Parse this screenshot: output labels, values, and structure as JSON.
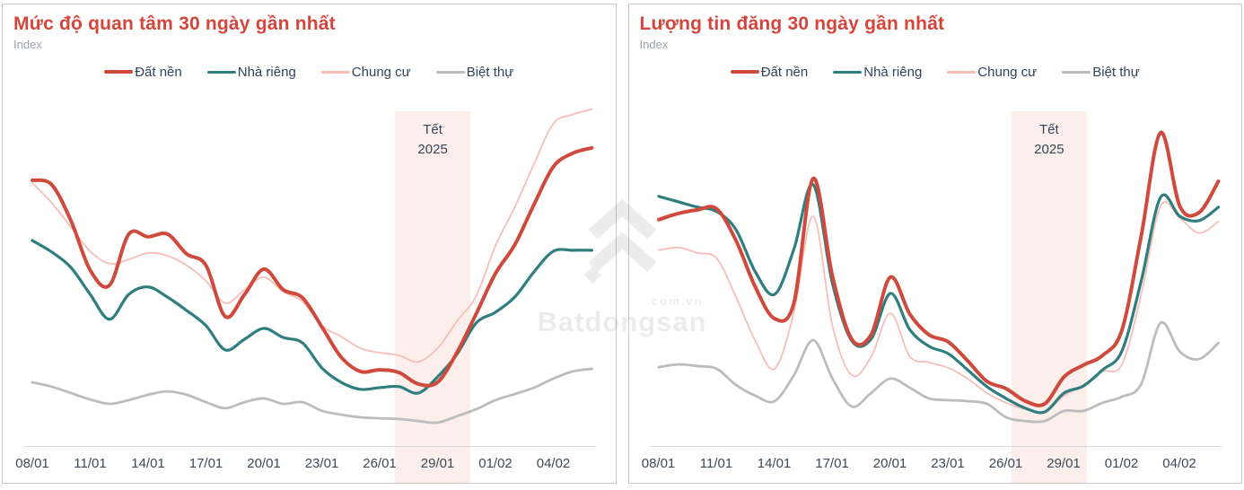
{
  "watermark": {
    "brand": "Batdongsan",
    "domain": ".com.vn",
    "logo": "chevron-gem-icon"
  },
  "colors": {
    "title_accent": "#d5453b",
    "axis_text": "#3b4a5a",
    "subtitle_text": "#9ba1a8",
    "panel_border": "#c9c9c9",
    "band_fill": "#fbeeeb"
  },
  "chart_data": [
    {
      "type": "line",
      "title": "Mức độ quan tâm 30 ngày gần nhất",
      "subtitle": "Index",
      "legend_position": "top",
      "grid": false,
      "ylim": [
        0,
        105
      ],
      "x": {
        "days": 30,
        "tick_labels": [
          "08/01",
          "11/01",
          "14/01",
          "17/01",
          "20/01",
          "23/01",
          "26/01",
          "29/01",
          "01/02",
          "04/02"
        ],
        "tick_days": [
          0,
          3,
          6,
          9,
          12,
          15,
          18,
          21,
          24,
          27
        ]
      },
      "band": {
        "label": "Tết 2025",
        "label_lines": [
          "Tết",
          "2025"
        ],
        "start_day": 18.8,
        "end_day": 22.7,
        "color": "#fbeeeb"
      },
      "series": [
        {
          "name": "Đất nền",
          "key": "dat-nen",
          "color": "#cf4a3c",
          "stroke_width": 4,
          "values": [
            79.2,
            77.9,
            67.2,
            52.5,
            48,
            63.2,
            62.4,
            63.2,
            57.3,
            53.9,
            38.7,
            45.3,
            52.8,
            46.7,
            44.3,
            35.7,
            26.7,
            22.4,
            22.9,
            22.1,
            18.7,
            19.2,
            28,
            39.5,
            51.5,
            60,
            72,
            83.2,
            87.2,
            88.8
          ]
        },
        {
          "name": "Nhà riêng",
          "key": "nha-rieng",
          "color": "#2e7d7f",
          "stroke_width": 3.2,
          "values": [
            61.3,
            57.9,
            53.3,
            45.3,
            37.9,
            45.3,
            47.5,
            44.5,
            40.5,
            36,
            28.8,
            32,
            35.2,
            32.5,
            30.9,
            23.5,
            19.2,
            17.1,
            17.6,
            17.9,
            16,
            20.8,
            27.5,
            36.8,
            40,
            44.5,
            52,
            58.1,
            58.4,
            58.4
          ]
        },
        {
          "name": "Chung cư",
          "key": "chung-cu",
          "color": "#f6beb6",
          "stroke_width": 1.8,
          "values": [
            78.4,
            72.5,
            65.3,
            58.1,
            54.4,
            55.7,
            57.6,
            56.8,
            53.9,
            49.3,
            42.7,
            46.7,
            50.4,
            46.1,
            43.2,
            36,
            32.8,
            29.3,
            28,
            27.2,
            25.3,
            29.3,
            37.3,
            44.8,
            59.7,
            71.2,
            84,
            96,
            98.7,
            100.3
          ]
        },
        {
          "name": "Biệt thự",
          "key": "biet-thu",
          "color": "#bcbcbc",
          "stroke_width": 2.8,
          "values": [
            19.2,
            17.9,
            16,
            14.1,
            12.8,
            13.9,
            15.5,
            16.5,
            15.5,
            13.3,
            11.5,
            13.3,
            14.4,
            12.8,
            13.3,
            10.7,
            9.6,
            8.8,
            8.5,
            8.3,
            7.7,
            7.2,
            9.1,
            11.2,
            13.9,
            15.7,
            17.6,
            20.3,
            22.4,
            23.2
          ]
        }
      ]
    },
    {
      "type": "line",
      "title": "Lượng tin đăng 30 ngày gần nhất",
      "subtitle": "Index",
      "legend_position": "top",
      "grid": false,
      "ylim": [
        0,
        105
      ],
      "x": {
        "days": 30,
        "tick_labels": [
          "08/01",
          "11/01",
          "14/01",
          "17/01",
          "20/01",
          "23/01",
          "26/01",
          "29/01",
          "01/02",
          "04/02"
        ],
        "tick_days": [
          0,
          3,
          6,
          9,
          12,
          15,
          18,
          21,
          24,
          27
        ]
      },
      "band": {
        "label": "Tết 2025",
        "label_lines": [
          "Tết",
          "2025"
        ],
        "start_day": 18.3,
        "end_day": 22.2,
        "color": "#fbeeeb"
      },
      "series": [
        {
          "name": "Đất nền",
          "key": "dat-nen",
          "color": "#cf4a3c",
          "stroke_width": 4,
          "values": [
            67.5,
            69.3,
            70.4,
            70.7,
            61.3,
            47.5,
            38.1,
            42.7,
            79.7,
            50.7,
            32,
            33.3,
            50.4,
            39.5,
            33.3,
            31.2,
            25.6,
            19.5,
            17.3,
            13.6,
            12.8,
            20.8,
            24.3,
            27.2,
            34.7,
            62.7,
            93.3,
            71.5,
            69.6,
            78.9
          ]
        },
        {
          "name": "Nhà riêng",
          "key": "nha-rieng",
          "color": "#2e7d7f",
          "stroke_width": 3.2,
          "values": [
            74.4,
            72.8,
            71.2,
            69.9,
            64.5,
            52,
            45.3,
            58.7,
            77.9,
            48.5,
            31.5,
            32,
            45.6,
            34.9,
            29.9,
            27.7,
            22.9,
            17.9,
            14.4,
            11.5,
            10.4,
            16,
            18.1,
            22.9,
            28.5,
            49.3,
            74.1,
            68.5,
            67.2,
            71.2
          ]
        },
        {
          "name": "Chung cư",
          "key": "chung-cu",
          "color": "#f6beb6",
          "stroke_width": 1.8,
          "values": [
            58.4,
            59.2,
            57.6,
            56,
            44.5,
            31.5,
            23.2,
            40,
            68.5,
            36,
            21.3,
            26.7,
            39.7,
            26.9,
            25.1,
            23.5,
            20.3,
            16,
            13.1,
            11.2,
            10.4,
            15.2,
            18.4,
            22.4,
            24.5,
            45.3,
            71.5,
            68,
            63.5,
            66.9
          ]
        },
        {
          "name": "Biệt thự",
          "key": "biet-thu",
          "color": "#bcbcbc",
          "stroke_width": 2.8,
          "values": [
            23.7,
            24.5,
            24,
            23.2,
            18.4,
            15.2,
            13.6,
            21.3,
            31.7,
            20.3,
            12,
            16,
            20.3,
            17.6,
            14.4,
            13.9,
            13.6,
            12.8,
            8.8,
            7.7,
            7.7,
            10.7,
            10.7,
            13.1,
            14.9,
            18.7,
            36.8,
            28.3,
            26.1,
            30.9
          ]
        }
      ]
    }
  ]
}
